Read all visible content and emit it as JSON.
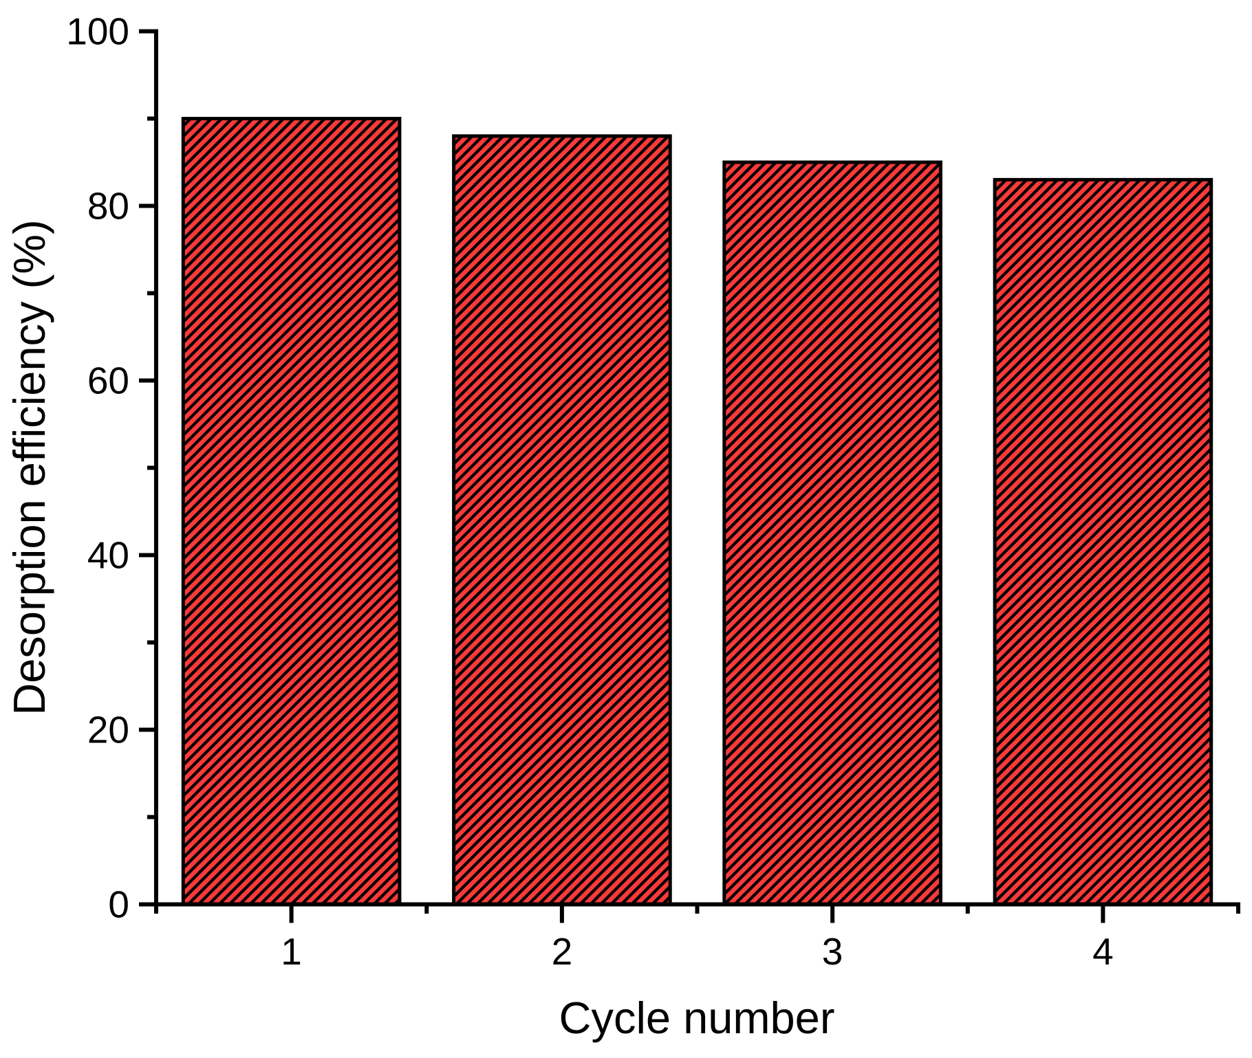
{
  "chart_data": {
    "type": "bar",
    "title": "",
    "xlabel": "Cycle number",
    "ylabel": "Desorption efficiency (%)",
    "categories": [
      1,
      2,
      3,
      4
    ],
    "values": [
      90,
      88,
      85,
      83
    ],
    "xlim": [
      0.5,
      4.5
    ],
    "ylim": [
      0,
      100
    ],
    "x_major_ticks": [
      1,
      2,
      3,
      4
    ],
    "x_minor_ticks": [
      0.5,
      1.5,
      2.5,
      3.5,
      4.5
    ],
    "y_major_ticks": [
      0,
      20,
      40,
      60,
      80,
      100
    ],
    "y_minor_ticks": [
      10,
      30,
      50,
      70,
      90
    ],
    "bar_width_ratio": 0.8,
    "grid": false,
    "legend": false,
    "bar_fill_color": "#fa3a3a",
    "bar_hatch_color": "#000000",
    "bar_hatch_style": "diagonal-forward",
    "bar_edge_color": "#000000",
    "axis_color": "#000000",
    "text_color": "#000000",
    "background_color": "#ffffff"
  }
}
